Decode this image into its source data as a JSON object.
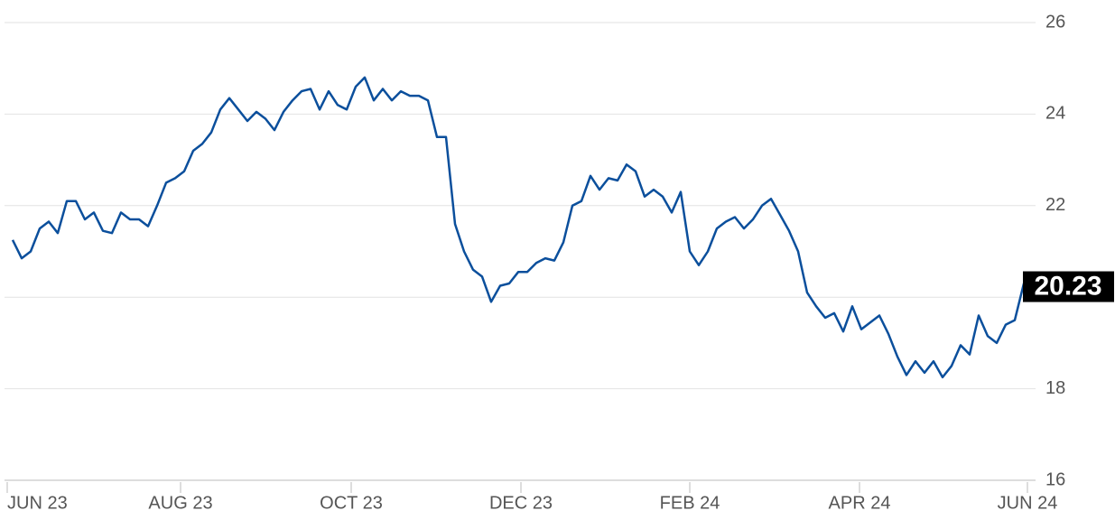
{
  "chart_data": {
    "type": "line",
    "values": [
      21.25,
      20.85,
      21.0,
      21.5,
      21.65,
      21.4,
      22.1,
      22.1,
      21.7,
      21.85,
      21.45,
      21.4,
      21.85,
      21.7,
      21.7,
      21.55,
      22.0,
      22.5,
      22.6,
      22.75,
      23.2,
      23.35,
      23.6,
      24.1,
      24.35,
      24.1,
      23.85,
      24.05,
      23.9,
      23.65,
      24.05,
      24.3,
      24.5,
      24.55,
      24.1,
      24.5,
      24.2,
      24.1,
      24.6,
      24.8,
      24.3,
      24.55,
      24.3,
      24.5,
      24.4,
      24.4,
      24.3,
      23.5,
      23.5,
      21.6,
      21.0,
      20.6,
      20.45,
      19.9,
      20.25,
      20.3,
      20.55,
      20.55,
      20.75,
      20.85,
      20.8,
      21.2,
      22.0,
      22.1,
      22.65,
      22.35,
      22.6,
      22.55,
      22.9,
      22.75,
      22.2,
      22.35,
      22.2,
      21.85,
      22.3,
      21.0,
      20.7,
      21.0,
      21.5,
      21.65,
      21.75,
      21.5,
      21.7,
      22.0,
      22.15,
      21.8,
      21.45,
      21.0,
      20.1,
      19.8,
      19.55,
      19.65,
      19.25,
      19.8,
      19.3,
      19.45,
      19.6,
      19.2,
      18.7,
      18.3,
      18.6,
      18.35,
      18.6,
      18.25,
      18.5,
      18.95,
      18.75,
      19.6,
      19.15,
      19.0,
      19.4,
      19.5,
      20.3,
      20.23
    ],
    "color": "#0b4f9c",
    "xlim": [
      -0.9,
      113.3
    ],
    "xticks": [
      {
        "value": -0.6,
        "label": "JUN 23"
      },
      {
        "value": 18.6,
        "label": "AUG 23"
      },
      {
        "value": 37.5,
        "label": "OCT 23"
      },
      {
        "value": 56.3,
        "label": "DEC 23"
      },
      {
        "value": 75,
        "label": "FEB 24"
      },
      {
        "value": 93.8,
        "label": "APR 24"
      },
      {
        "value": 112.4,
        "label": "JUN 24"
      }
    ],
    "ylim": [
      16,
      26
    ],
    "yticks": [
      16,
      18,
      20,
      22,
      24,
      26
    ],
    "grid": true
  }
}
